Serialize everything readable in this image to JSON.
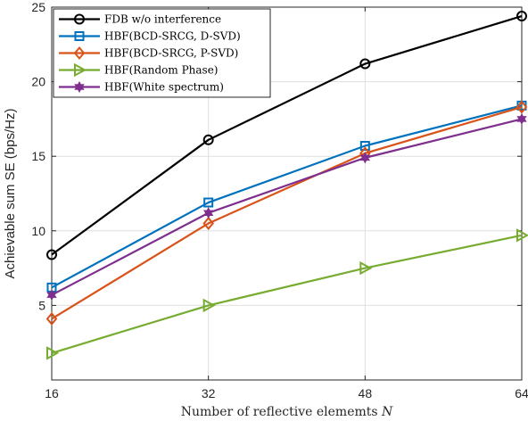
{
  "chart_data": {
    "type": "line",
    "xlabel": "Number of reflective elememts",
    "xlabel_var": "N",
    "ylabel": "Achievable sum SE (bps/Hz)",
    "x": [
      16,
      32,
      48,
      64
    ],
    "x_ticks": [
      "16",
      "32",
      "48",
      "64"
    ],
    "xlim": [
      16,
      64
    ],
    "ylim": [
      0,
      25
    ],
    "y_ticks": [
      5,
      10,
      15,
      20,
      25
    ],
    "y_tick_labels": [
      "5",
      "10",
      "15",
      "20",
      "25"
    ],
    "grid": true,
    "legend_position": "top-left",
    "series": [
      {
        "name": "FDB w/o interference",
        "values": [
          8.4,
          16.1,
          21.2,
          24.4
        ],
        "color": "#000000",
        "marker": "circle"
      },
      {
        "name": "HBF(BCD-SRCG, D-SVD)",
        "values": [
          6.2,
          11.9,
          15.7,
          18.4
        ],
        "color": "#0072BD",
        "marker": "square"
      },
      {
        "name": "HBF(BCD-SRCG, P-SVD)",
        "values": [
          4.1,
          10.5,
          15.2,
          18.3
        ],
        "color": "#D95319",
        "marker": "diamond"
      },
      {
        "name": "HBF(Random Phase)",
        "values": [
          1.8,
          5.0,
          7.5,
          9.7
        ],
        "color": "#77AC30",
        "marker": "triangle-right"
      },
      {
        "name": "HBF(White spectrum)",
        "values": [
          5.7,
          11.2,
          14.9,
          17.5
        ],
        "color": "#7E2F8E",
        "marker": "hexagram"
      }
    ]
  }
}
